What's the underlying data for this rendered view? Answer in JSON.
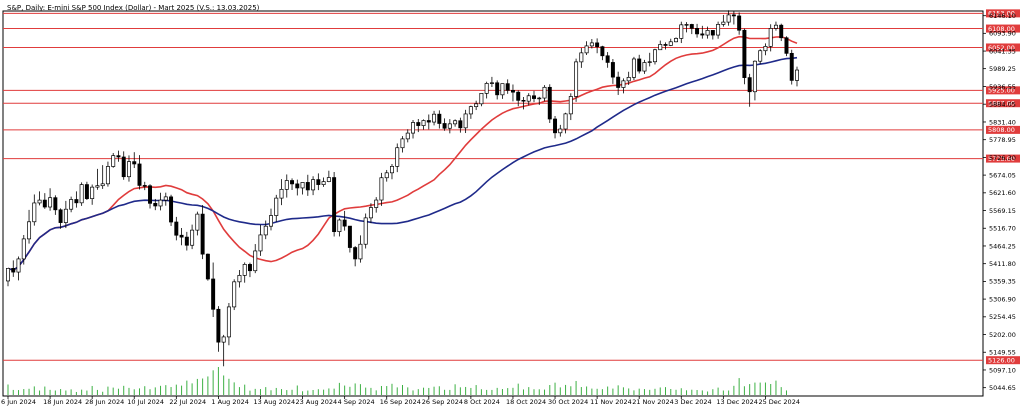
{
  "chart_data": {
    "type": "candlestick",
    "title": "S&P, Daily:  E-mini S&P 500 Index (Dollar) - Mart 2025 (V.S.: 13.03.2025)",
    "y_ticks": [
      6146.1,
      6093.9,
      6041.35,
      5989.25,
      5936.55,
      5884.05,
      5831.4,
      5778.95,
      5726.3,
      5674.05,
      5621.6,
      5569.15,
      5516.7,
      5464.25,
      5411.8,
      5359.35,
      5306.9,
      5254.45,
      5202.0,
      5149.55,
      5097.1,
      5044.65
    ],
    "ylim": [
      5020,
      6160
    ],
    "x_tick_labels": [
      "6 Jun 2024",
      "18 Jun 2024",
      "28 Jun 2024",
      "10 Jul 2024",
      "22 Jul 2024",
      "1 Aug 2024",
      "13 Aug 2024",
      "23 Aug 2024",
      "4 Sep 2024",
      "16 Sep 2024",
      "26 Sep 2024",
      "8 Oct 2024",
      "18 Oct 2024",
      "30 Oct 2024",
      "11 Nov 2024",
      "21 Nov 2024",
      "3 Dec 2024",
      "13 Dec 2024",
      "25 Dec 2024"
    ],
    "x_tick_index": [
      0,
      8,
      16,
      24,
      32,
      40,
      48,
      56,
      64,
      72,
      80,
      88,
      96,
      104,
      112,
      120,
      128,
      136,
      144
    ],
    "horizontal_levels": [
      {
        "price": 6153.0,
        "label": "6153.00",
        "color": "#e03c3c"
      },
      {
        "price": 6108.0,
        "label": "6108.00",
        "color": "#e03c3c"
      },
      {
        "price": 6052.0,
        "label": "6052.00",
        "color": "#e03c3c"
      },
      {
        "price": 5925.0,
        "label": "5925.00",
        "color": "#e03c3c"
      },
      {
        "price": 5887.0,
        "label": "5887.00",
        "color": "#e03c3c"
      },
      {
        "price": 5808.0,
        "label": "5808.00",
        "color": "#e03c3c"
      },
      {
        "price": 5723.0,
        "label": "5723.00",
        "color": "#e03c3c"
      },
      {
        "price": 5126.0,
        "label": "5126.00",
        "color": "#e03c3c"
      }
    ],
    "candles": {
      "open": [
        5360.66,
        5397.93,
        5386.95,
        5425.92,
        5485.19,
        5535.89,
        5591.63,
        5600.07,
        5579.59,
        5607.22,
        5571.32,
        5533.44,
        5573.09,
        5601.83,
        5592.04,
        5646.06,
        5604.42,
        5638.46,
        5642.69,
        5648.3,
        5699.63,
        5731.66,
        5727.68,
        5669.31,
        5713.98,
        5707.06,
        5643.48,
        5642.49,
        5590.47,
        5582.7,
        5599.98,
        5609.64,
        5535.16,
        5496.07,
        5490.47,
        5466.36,
        5511.14,
        5558.57,
        5440.06,
        5366.47,
        5276.81,
        5179.46,
        5194.96,
        5283.79,
        5358.08,
        5377.16,
        5409.72,
        5390.95,
        5449.53,
        5496.97,
        5522.77,
        5554.29,
        5605.98,
        5631.94,
        5658.06,
        5648.04,
        5636.08,
        5652.45,
        5630.19,
        5660.73,
        5646.0,
        5654.87,
        5666.84,
        5506.61,
        5541.13,
        5522.97,
        5459.58,
        5425.89,
        5469.42,
        5547.44,
        5578.0,
        5600.24,
        5666.24,
        5680.88,
        5699.98,
        5755.13,
        5781.34,
        5798.48,
        5829.86,
        5820.71,
        5835.72,
        5831.09,
        5854.48,
        5826.92,
        5812.8,
        5825.84,
        5835.06,
        5814.05,
        5855.2,
        5876.79,
        5885.17,
        5916.13,
        5945.52,
        5947.44,
        5911.81,
        5944.87,
        5925.07,
        5919.65,
        5895.43,
        5893.0,
        5908.99,
        5900.72,
        5902.24,
        5934.04,
        5840.2,
        5799.35,
        5810.59,
        5855.41,
        5906.93,
        6009.35,
        6036.05,
        6056.62,
        6065.63,
        6054.39,
        6027.4,
        6007.7,
        5964.24,
        5933.44,
        5953.19,
        5963.56,
        6018.02,
        5982.17,
        6007.45,
        6009.73,
        6045.29,
        6060.99,
        6058.0,
        6068.86,
        6078.86,
        6119.06,
        6120.25,
        6108.6,
        6092.2,
        6088.77,
        6102.59,
        6088.74,
        6120.4,
        6127.11,
        6148.48,
        6145.37,
        6103.05,
        5962.74,
        5920.93,
        6011.34,
        6042.35,
        6055.22,
        6108.4,
        6118.0,
        6080.75,
        6034.61,
        5954.5
      ],
      "high": [
        5379.13,
        5421.59,
        5433.06,
        5496.76,
        5571.24,
        5616.8,
        5626.05,
        5620.69,
        5635.28,
        5614.26,
        5575.46,
        5597.74,
        5610.4,
        5625.93,
        5652.56,
        5654.53,
        5646.19,
        5692.55,
        5703.62,
        5714.08,
        5739.59,
        5746.74,
        5744.42,
        5732.36,
        5741.94,
        5733.21,
        5654.18,
        5647.11,
        5603.46,
        5621.8,
        5622.13,
        5615.92,
        5550.34,
        5517.63,
        5506.02,
        5527.27,
        5565.88,
        5585.34,
        5442.09,
        5415.24,
        5285.95,
        5200.94,
        5295.52,
        5365.6,
        5393.22,
        5415.51,
        5414.94,
        5469.92,
        5526.89,
        5539.63,
        5574.99,
        5615.59,
        5662.22,
        5676.03,
        5664.27,
        5660.65,
        5652.89,
        5675.05,
        5670.84,
        5679.19,
        5667.11,
        5687.11,
        5683.26,
        5545.94,
        5568.1,
        5522.97,
        5463.87,
        5495.6,
        5560.4,
        5590.79,
        5608.91,
        5680.81,
        5689.32,
        5706.84,
        5767.82,
        5789.4,
        5809.82,
        5837.18,
        5840.23,
        5838.92,
        5853.59,
        5864.2,
        5865.74,
        5842.2,
        5839.91,
        5839.06,
        5844.09,
        5867.37,
        5879.75,
        5894.38,
        5917.31,
        5950.63,
        5965.02,
        5954.58,
        5945.29,
        5957.56,
        5942.28,
        5925.27,
        5905.38,
        5916.65,
        5923.61,
        5905.83,
        5940.62,
        5943.0,
        5849.14,
        5822.82,
        5858.73,
        5916.36,
        6018.98,
        6050.38,
        6070.59,
        6077.03,
        6078.93,
        6056.99,
        6038.4,
        6017.93,
        5980.32,
        5960.33,
        5980.11,
        6024.19,
        6030.32,
        6015.32,
        6036.2,
        6048.11,
        6072.41,
        6067.27,
        6077.93,
        6081.76,
        6128.36,
        6127.12,
        6122.12,
        6121.82,
        6116.09,
        6113.91,
        6101.8,
        6128.7,
        6148.32,
        6162.13,
        6160.19,
        6155.81,
        6107.71,
        5973.94,
        6013.78,
        6046.86,
        6064.2,
        6120.74,
        6128.68,
        6122.5,
        6085.3,
        6045.25,
        5995.34
      ],
      "low": [
        5345.06,
        5372.69,
        5362.44,
        5409.2,
        5471.22,
        5524.48,
        5584.5,
        5574.21,
        5568.48,
        5556.25,
        5515.36,
        5517.31,
        5564.05,
        5577.78,
        5582.93,
        5600.39,
        5586.16,
        5630.67,
        5633.2,
        5639.81,
        5695.82,
        5713.44,
        5660.24,
        5654.92,
        5694.98,
        5631.41,
        5629.59,
        5575.01,
        5570.3,
        5569.47,
        5583.44,
        5523.36,
        5480.91,
        5466.38,
        5450.77,
        5454.74,
        5495.53,
        5425.37,
        5361.49,
        5253.93,
        5150.92,
        5108.0,
        5170.15,
        5274.54,
        5341.26,
        5355.53,
        5371.93,
        5383.78,
        5435.08,
        5484.4,
        5510.51,
        5535.76,
        5585.05,
        5607.53,
        5629.84,
        5613.82,
        5616.66,
        5612.67,
        5614.98,
        5629.65,
        5639.31,
        5653.13,
        5492.27,
        5492.46,
        5509.7,
        5445.09,
        5404.0,
        5414.76,
        5456.8,
        5532.01,
        5563.03,
        5582.79,
        5654.79,
        5661.96,
        5682.94,
        5740.87,
        5771.06,
        5782.56,
        5801.45,
        5808.57,
        5809.43,
        5821.47,
        5812.05,
        5805.41,
        5797.72,
        5817.74,
        5799.79,
        5798.66,
        5840.64,
        5866.74,
        5877.91,
        5901.02,
        5935.09,
        5898.09,
        5899.77,
        5914.68,
        5892.5,
        5878.11,
        5868.67,
        5880.56,
        5890.16,
        5881.77,
        5892.52,
        5828.44,
        5782.9,
        5788.06,
        5797.71,
        5837.09,
        5891.04,
        5991.62,
        6029.53,
        6049.06,
        6034.94,
        6014.43,
        5991.95,
        5944.07,
        5911.38,
        5916.2,
        5941.03,
        5955.56,
        5975.01,
        5973.66,
        5995.9,
        6001.45,
        6044.68,
        6046.05,
        6056.1,
        6067.52,
        6065.08,
        6096.85,
        6091.65,
        6081.01,
        6078.17,
        6078.36,
        6075.66,
        6077.76,
        6113.62,
        6116.5,
        6120.04,
        6089.74,
        5943.25,
        5876.45,
        5895.27,
        6002.96,
        6028.94,
        6040.36,
        6101.9,
        6071.04,
        6026.41,
        5942.22,
        5936.98
      ],
      "close": [
        5397.93,
        5386.95,
        5425.92,
        5485.19,
        5535.89,
        5591.63,
        5600.07,
        5579.59,
        5607.22,
        5571.32,
        5533.44,
        5573.09,
        5601.83,
        5592.04,
        5646.06,
        5604.42,
        5638.46,
        5642.69,
        5648.3,
        5699.63,
        5731.66,
        5727.68,
        5669.31,
        5713.98,
        5707.06,
        5643.48,
        5642.49,
        5590.47,
        5582.7,
        5599.98,
        5609.64,
        5535.16,
        5496.07,
        5490.47,
        5466.36,
        5511.14,
        5558.57,
        5440.06,
        5366.47,
        5276.81,
        5179.46,
        5194.96,
        5283.79,
        5358.08,
        5377.16,
        5409.72,
        5390.95,
        5449.53,
        5496.97,
        5522.77,
        5554.29,
        5605.98,
        5631.94,
        5658.06,
        5648.04,
        5636.08,
        5652.45,
        5630.19,
        5660.73,
        5646.0,
        5654.87,
        5666.84,
        5506.61,
        5541.13,
        5522.97,
        5459.58,
        5425.89,
        5469.42,
        5547.44,
        5578.0,
        5600.24,
        5666.24,
        5680.88,
        5699.98,
        5755.13,
        5781.34,
        5798.48,
        5829.86,
        5820.71,
        5835.72,
        5831.09,
        5854.48,
        5826.92,
        5812.8,
        5825.84,
        5835.06,
        5814.05,
        5855.2,
        5876.79,
        5885.17,
        5916.13,
        5945.52,
        5947.44,
        5911.81,
        5944.87,
        5925.07,
        5919.65,
        5895.43,
        5893.0,
        5908.99,
        5900.72,
        5902.24,
        5934.04,
        5840.2,
        5799.35,
        5810.59,
        5855.41,
        5906.93,
        6009.35,
        6036.05,
        6056.62,
        6065.63,
        6054.39,
        6027.4,
        6007.7,
        5964.24,
        5933.44,
        5953.19,
        5963.56,
        6018.02,
        5982.17,
        6007.45,
        6009.73,
        6045.29,
        6060.99,
        6058.0,
        6068.86,
        6078.86,
        6119.06,
        6120.25,
        6108.6,
        6092.2,
        6088.77,
        6102.59,
        6088.74,
        6120.4,
        6127.11,
        6148.48,
        6145.37,
        6103.05,
        5962.74,
        5920.93,
        6011.34,
        6042.35,
        6055.22,
        6108.4,
        6118.0,
        6080.75,
        6034.61,
        5954.5,
        5985.18
      ]
    },
    "volume": [
      149,
      72,
      70,
      84,
      88,
      122,
      64,
      120,
      73,
      64,
      84,
      64,
      80,
      43,
      76,
      63,
      128,
      72,
      46,
      119,
      105,
      89,
      130,
      101,
      81,
      94,
      125,
      82,
      108,
      130,
      140,
      113,
      147,
      133,
      204,
      165,
      228,
      234,
      263,
      350,
      397,
      277,
      230,
      179,
      112,
      147,
      62,
      87,
      84,
      112,
      67,
      100,
      84,
      70,
      74,
      135,
      53,
      63,
      71,
      82,
      76,
      93,
      90,
      172,
      134,
      116,
      164,
      154,
      105,
      101,
      66,
      128,
      127,
      159,
      108,
      142,
      108,
      65,
      83,
      104,
      100,
      118,
      124,
      74,
      72,
      152,
      109,
      114,
      100,
      141,
      82,
      72,
      72,
      101,
      85,
      98,
      102,
      161,
      79,
      112,
      82,
      81,
      77,
      142,
      175,
      108,
      143,
      124,
      199,
      113,
      121,
      91,
      88,
      83,
      120,
      91,
      137,
      109,
      93,
      66,
      90,
      84,
      73,
      88,
      107,
      111,
      85,
      74,
      96,
      67,
      75,
      71,
      65,
      50,
      82,
      105,
      64,
      64,
      130,
      240,
      124,
      155,
      176,
      176,
      177,
      156,
      204,
      112,
      65
    ],
    "series": [
      {
        "name": "",
        "color": "#e03c3c",
        "type": "ma",
        "period": 20
      },
      {
        "name": "",
        "color": "#1f2a8a",
        "type": "ma",
        "period": 50
      }
    ],
    "colors": {
      "bull": "#ffffff",
      "bear": "#000000",
      "volume": "#3cb043",
      "grid": "#c8c8c8"
    }
  }
}
